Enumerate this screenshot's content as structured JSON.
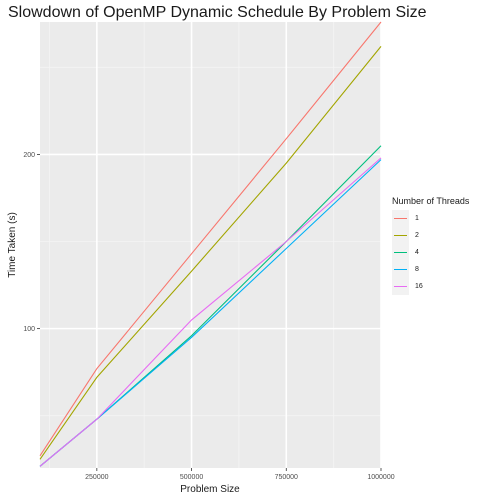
{
  "chart_data": {
    "type": "line",
    "title": "Slowdown of OpenMP Dynamic Schedule By Problem Size",
    "xlabel": "Problem Size",
    "ylabel": "Time Taken (s)",
    "xlim": [
      100000,
      1000000
    ],
    "ylim": [
      20,
      276
    ],
    "x_ticks": [
      250000,
      500000,
      750000,
      1000000
    ],
    "x_tick_labels": [
      "250000",
      "500000",
      "750000",
      "1000000"
    ],
    "y_ticks": [
      100,
      200
    ],
    "y_tick_labels": [
      "100",
      "200"
    ],
    "grid": true,
    "legend_title": "Number of Threads",
    "legend_position": "right",
    "x": [
      100000,
      250000,
      500000,
      750000,
      1000000
    ],
    "series": [
      {
        "name": "1",
        "color": "#F8766D",
        "values": [
          27,
          77,
          143,
          209,
          276
        ]
      },
      {
        "name": "2",
        "color": "#A3A500",
        "values": [
          25,
          72,
          133,
          195,
          262
        ]
      },
      {
        "name": "4",
        "color": "#00BF7D",
        "values": [
          21,
          48,
          96,
          150,
          205
        ]
      },
      {
        "name": "8",
        "color": "#00B0F6",
        "values": [
          21,
          48,
          95,
          146,
          197
        ]
      },
      {
        "name": "16",
        "color": "#E76BF3",
        "values": [
          21,
          48,
          105,
          150,
          198
        ]
      }
    ]
  }
}
